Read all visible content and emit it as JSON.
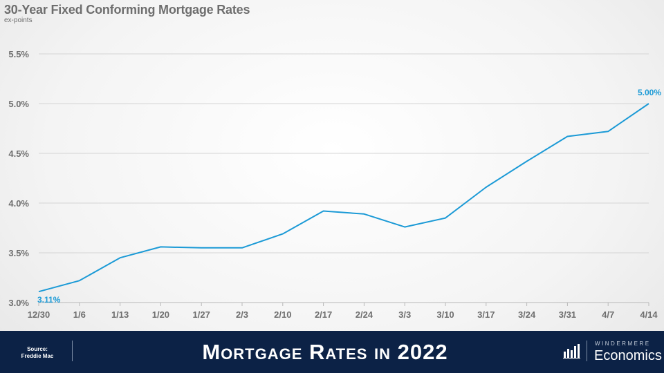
{
  "chart_data": {
    "type": "line",
    "title": "30-Year Fixed Conforming Mortgage Rates",
    "subtitle": "ex-points",
    "categories": [
      "12/30",
      "1/6",
      "1/13",
      "1/20",
      "1/27",
      "2/3",
      "2/10",
      "2/17",
      "2/24",
      "3/3",
      "3/10",
      "3/17",
      "3/24",
      "3/31",
      "4/7",
      "4/14"
    ],
    "series": [
      {
        "values": [
          3.11,
          3.22,
          3.45,
          3.56,
          3.55,
          3.55,
          3.69,
          3.92,
          3.89,
          3.76,
          3.85,
          4.16,
          4.42,
          4.67,
          4.72,
          5.0
        ]
      }
    ],
    "yticks": [
      "3.0%",
      "3.5%",
      "4.0%",
      "4.5%",
      "5.0%",
      "5.5%"
    ],
    "ylim": [
      3.0,
      5.5
    ],
    "grid": true,
    "annotations": [
      {
        "label": "3.11%",
        "index": 0
      },
      {
        "label": "5.00%",
        "index": 15
      }
    ],
    "line_color": "#1b9ad6"
  },
  "footer": {
    "source": "Source:",
    "source_name": "Freddie Mac",
    "title": "Mortgage Rates in 2022",
    "brand_top": "WINDERMERE",
    "brand_main": "Economics"
  },
  "colors": {
    "footer_bg": "#0c2246",
    "tick_text": "#6e6e6e",
    "grid": "#d0d0d0"
  },
  "icons": {
    "logo": "bar-chart-icon"
  }
}
